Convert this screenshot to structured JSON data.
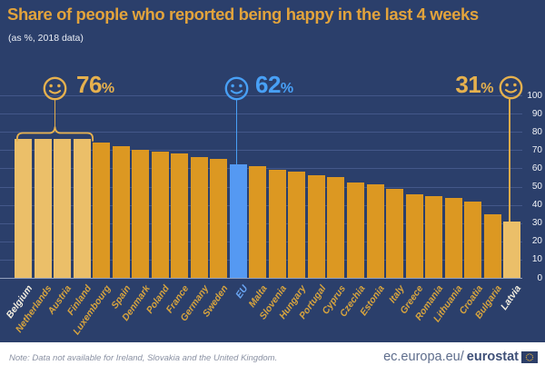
{
  "chart_data": {
    "type": "bar",
    "title": "Share of people who reported being happy in the last 4 weeks",
    "subtitle": "(as %, 2018 data)",
    "xlabel": "",
    "ylabel": "",
    "ylim": [
      0,
      100
    ],
    "yticks": [
      0,
      10,
      20,
      30,
      40,
      50,
      60,
      70,
      80,
      90,
      100
    ],
    "grid": "horizontal",
    "legend": "none",
    "countries": [
      {
        "name": "Belgium",
        "value": 76,
        "bar": "light",
        "label_style": "white"
      },
      {
        "name": "Netherlands",
        "value": 76,
        "bar": "light",
        "label_style": "gold"
      },
      {
        "name": "Austria",
        "value": 76,
        "bar": "light",
        "label_style": "gold"
      },
      {
        "name": "Finland",
        "value": 76,
        "bar": "light",
        "label_style": "gold"
      },
      {
        "name": "Luxembourg",
        "value": 74,
        "bar": "orange",
        "label_style": "gold"
      },
      {
        "name": "Spain",
        "value": 72,
        "bar": "orange",
        "label_style": "gold"
      },
      {
        "name": "Denmark",
        "value": 70,
        "bar": "orange",
        "label_style": "gold"
      },
      {
        "name": "Poland",
        "value": 69,
        "bar": "orange",
        "label_style": "gold"
      },
      {
        "name": "France",
        "value": 68,
        "bar": "orange",
        "label_style": "gold"
      },
      {
        "name": "Germany",
        "value": 66,
        "bar": "orange",
        "label_style": "gold"
      },
      {
        "name": "Sweden",
        "value": 65,
        "bar": "orange",
        "label_style": "gold"
      },
      {
        "name": "EU",
        "value": 62,
        "bar": "blue",
        "label_style": "blue"
      },
      {
        "name": "Malta",
        "value": 61,
        "bar": "orange",
        "label_style": "gold"
      },
      {
        "name": "Slovenia",
        "value": 59,
        "bar": "orange",
        "label_style": "gold"
      },
      {
        "name": "Hungary",
        "value": 58,
        "bar": "orange",
        "label_style": "gold"
      },
      {
        "name": "Portugal",
        "value": 56,
        "bar": "orange",
        "label_style": "gold"
      },
      {
        "name": "Cyprus",
        "value": 55,
        "bar": "orange",
        "label_style": "gold"
      },
      {
        "name": "Czechia",
        "value": 52,
        "bar": "orange",
        "label_style": "gold"
      },
      {
        "name": "Estonia",
        "value": 51,
        "bar": "orange",
        "label_style": "gold"
      },
      {
        "name": "Italy",
        "value": 49,
        "bar": "orange",
        "label_style": "gold"
      },
      {
        "name": "Greece",
        "value": 46,
        "bar": "orange",
        "label_style": "gold"
      },
      {
        "name": "Romania",
        "value": 45,
        "bar": "orange",
        "label_style": "gold"
      },
      {
        "name": "Lithuania",
        "value": 44,
        "bar": "orange",
        "label_style": "gold"
      },
      {
        "name": "Croatia",
        "value": 42,
        "bar": "orange",
        "label_style": "gold"
      },
      {
        "name": "Bulgaria",
        "value": 35,
        "bar": "orange",
        "label_style": "gold"
      },
      {
        "name": "Latvia",
        "value": 31,
        "bar": "light",
        "label_style": "white"
      }
    ],
    "annotations": [
      {
        "value": "76",
        "unit": "%",
        "style": "gold",
        "applies_to": [
          "Belgium",
          "Netherlands",
          "Austria",
          "Finland"
        ]
      },
      {
        "value": "62",
        "unit": "%",
        "style": "blue",
        "applies_to": [
          "EU"
        ]
      },
      {
        "value": "31",
        "unit": "%",
        "style": "gold",
        "applies_to": [
          "Latvia"
        ]
      }
    ]
  },
  "footer": {
    "note": "Note: Data not available for Ireland, Slovakia and the United Kingdom.",
    "site_regular": "ec.europa.eu/",
    "site_bold": "eurostat"
  },
  "colors": {
    "background": "#2b3f6b",
    "title": "#e2a33c",
    "bar_orange": "#dc9822",
    "bar_light": "#ebbf69",
    "bar_blue": "#5599f2",
    "accent_gold": "#e6b14e",
    "accent_blue": "#48a0f6",
    "gridline": "#44588a",
    "tick_text": "#f2f4f8"
  }
}
